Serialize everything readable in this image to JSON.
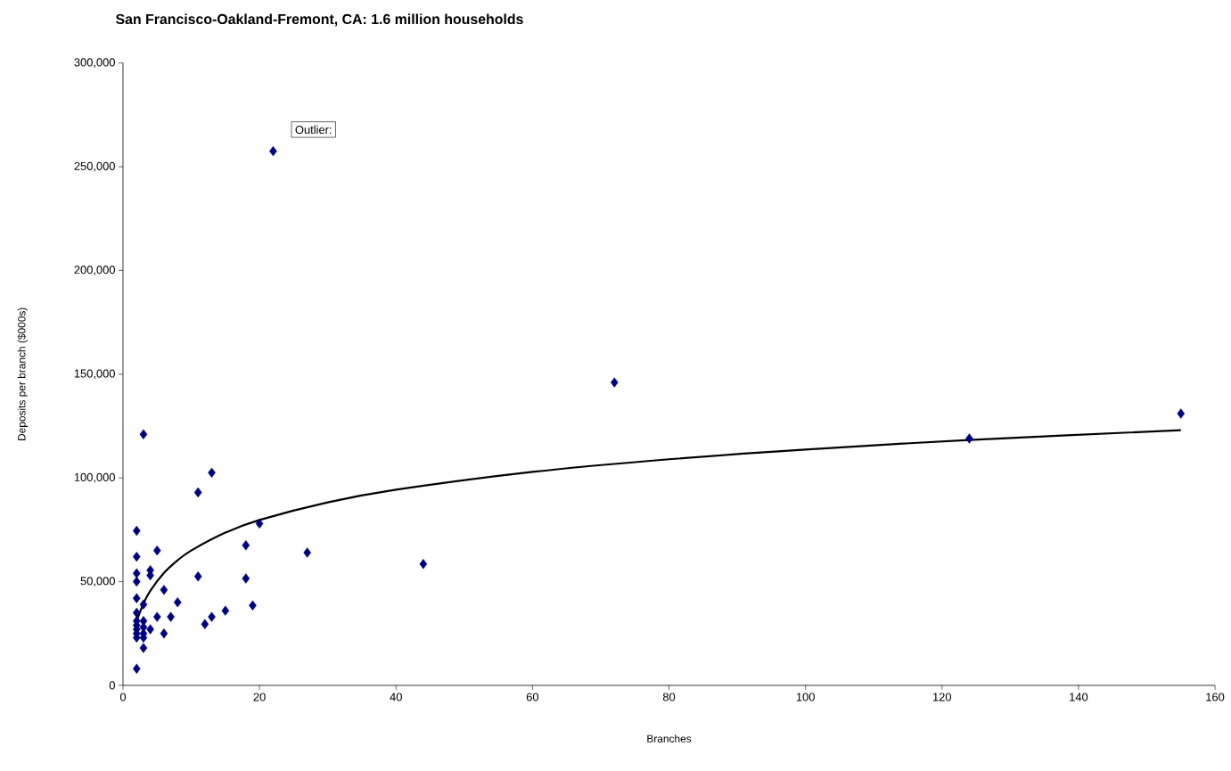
{
  "chart_data": {
    "type": "scatter",
    "title": "San Francisco-Oakland-Fremont, CA:  1.6 million households",
    "xlabel": "Branches",
    "ylabel": "Deposits per branch ($000s)",
    "xlim": [
      0,
      160
    ],
    "xticks": [
      0,
      20,
      40,
      60,
      80,
      100,
      120,
      140,
      160
    ],
    "ylim": [
      0,
      300000
    ],
    "yticks": [
      {
        "value": 0,
        "label": "0"
      },
      {
        "value": 50000,
        "label": "50,000"
      },
      {
        "value": 100000,
        "label": "100,000"
      },
      {
        "value": 150000,
        "label": "150,000"
      },
      {
        "value": 200000,
        "label": "200,000"
      },
      {
        "value": 250000,
        "label": "250,000"
      },
      {
        "value": 300000,
        "label": "300,000"
      }
    ],
    "grid": false,
    "marker": "diamond",
    "annotations": [
      "Outlier:"
    ],
    "series": [
      {
        "color": "#000080",
        "x": [
          2,
          2,
          2,
          2,
          2,
          2,
          2,
          2,
          2,
          2,
          2,
          2,
          3,
          3,
          3,
          3,
          3,
          3,
          3,
          4,
          4,
          4,
          5,
          5,
          6,
          6,
          7,
          8,
          11,
          11,
          12,
          13,
          13,
          15,
          18,
          18,
          19,
          20,
          22,
          27,
          44,
          72,
          124,
          155
        ],
        "values": [
          74500,
          62000,
          54000,
          50000,
          42000,
          35000,
          31000,
          29000,
          27000,
          25000,
          23000,
          8000,
          121000,
          39000,
          31000,
          28000,
          25000,
          23000,
          18000,
          55500,
          53000,
          27000,
          65000,
          33000,
          46000,
          25000,
          33000,
          40000,
          93000,
          52500,
          29500,
          102500,
          33000,
          36000,
          67500,
          51500,
          38500,
          78000,
          257500,
          64000,
          58500,
          146000,
          119000,
          131000
        ]
      },
      {
        "type": "line",
        "color": "#000000",
        "marker": "none",
        "x": [
          2,
          3,
          4,
          6,
          8,
          10,
          15,
          20,
          30,
          40,
          60,
          80,
          100,
          124,
          155
        ],
        "values": [
          31000,
          39500,
          45600,
          54200,
          60300,
          65000,
          73600,
          79700,
          88200,
          94300,
          102900,
          109000,
          113700,
          118300,
          123000
        ]
      }
    ]
  }
}
